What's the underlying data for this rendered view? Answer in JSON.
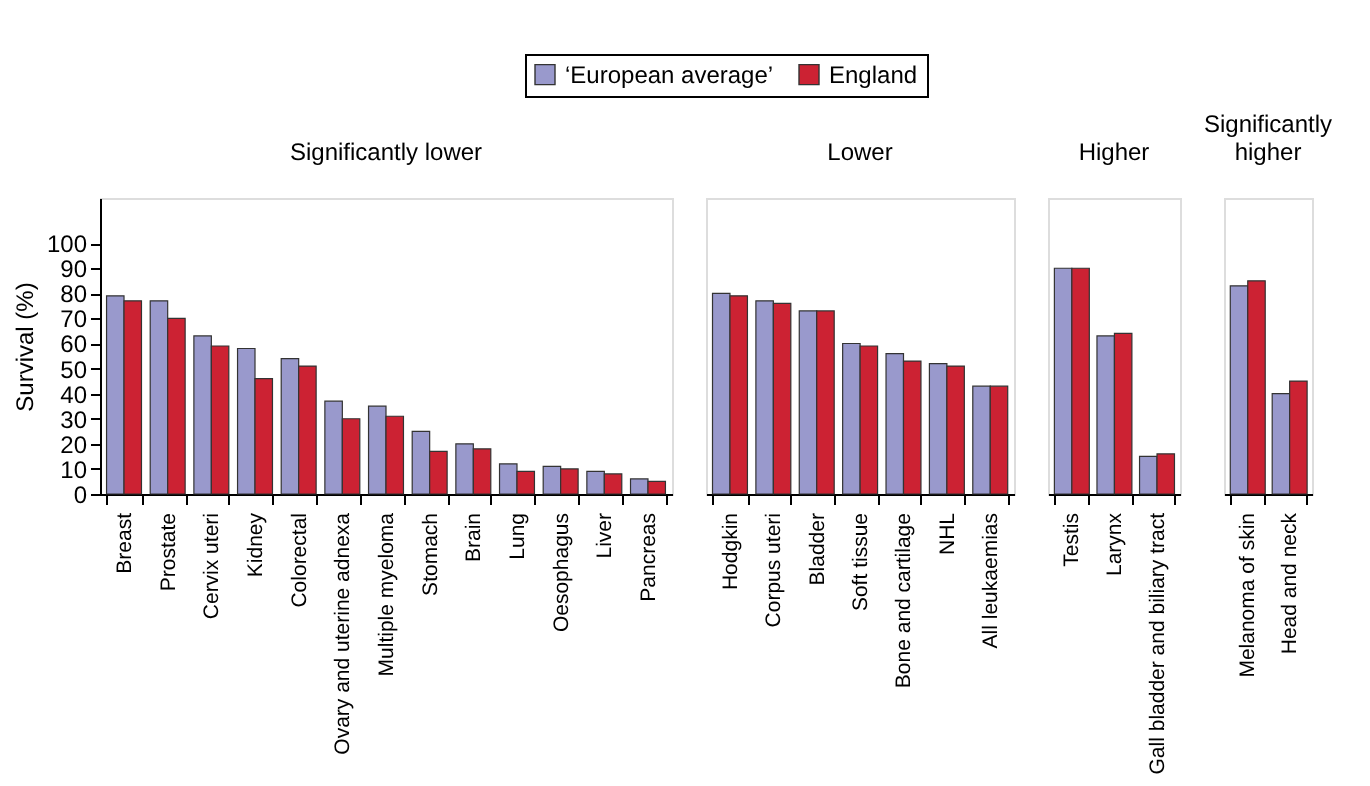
{
  "chart_data": [
    {
      "type": "bar",
      "title": "Significantly lower",
      "ylabel": "Survival (%)",
      "legend": "top",
      "grid": false,
      "ylim": [
        0,
        118
      ],
      "yticks": [
        0,
        10,
        20,
        30,
        40,
        50,
        60,
        70,
        80,
        90,
        100
      ],
      "categories": [
        "Breast",
        "Prostate",
        "Cervix uteri",
        "Kidney",
        "Colorectal",
        "Ovary and uterine adnexa",
        "Multiple myeloma",
        "Stomach",
        "Brain",
        "Lung",
        "Oesophagus",
        "Liver",
        "Pancreas"
      ],
      "series": [
        {
          "name": "‘European average’",
          "color": "#9999cc",
          "values": [
            79,
            77,
            63,
            58,
            54,
            37,
            35,
            25,
            20,
            12,
            11,
            9,
            6
          ]
        },
        {
          "name": "England",
          "color": "#cc2233",
          "values": [
            77,
            70,
            59,
            46,
            51,
            30,
            31,
            17,
            18,
            9,
            10,
            8,
            5
          ]
        }
      ]
    },
    {
      "type": "bar",
      "title": "Lower",
      "tick_labels": "x",
      "grid": false,
      "ylim": [
        0,
        118
      ],
      "categories": [
        "Hodgkin",
        "Corpus uteri",
        "Bladder",
        "Soft tissue",
        "Bone and cartilage",
        "NHL",
        "All leukaemias"
      ],
      "series": [
        {
          "name": "‘European average’",
          "color": "#9999cc",
          "values": [
            80,
            77,
            73,
            60,
            56,
            52,
            43
          ]
        },
        {
          "name": "England",
          "color": "#cc2233",
          "values": [
            79,
            76,
            73,
            59,
            53,
            51,
            43
          ]
        }
      ]
    },
    {
      "type": "bar",
      "title": "Higher",
      "tick_labels": "x",
      "grid": false,
      "ylim": [
        0,
        118
      ],
      "categories": [
        "Testis",
        "Larynx",
        "Gall bladder and biliary tract"
      ],
      "series": [
        {
          "name": "‘European average’",
          "color": "#9999cc",
          "values": [
            90,
            63,
            15
          ]
        },
        {
          "name": "England",
          "color": "#cc2233",
          "values": [
            90,
            64,
            16
          ]
        }
      ]
    },
    {
      "type": "bar",
      "title": "Significantly higher",
      "tick_labels": "x",
      "grid": false,
      "ylim": [
        0,
        118
      ],
      "categories": [
        "Melanoma of skin",
        "Head and neck"
      ],
      "series": [
        {
          "name": "‘European average’",
          "color": "#9999cc",
          "values": [
            83,
            40
          ]
        },
        {
          "name": "England",
          "color": "#cc2233",
          "values": [
            85,
            45
          ]
        }
      ]
    }
  ]
}
